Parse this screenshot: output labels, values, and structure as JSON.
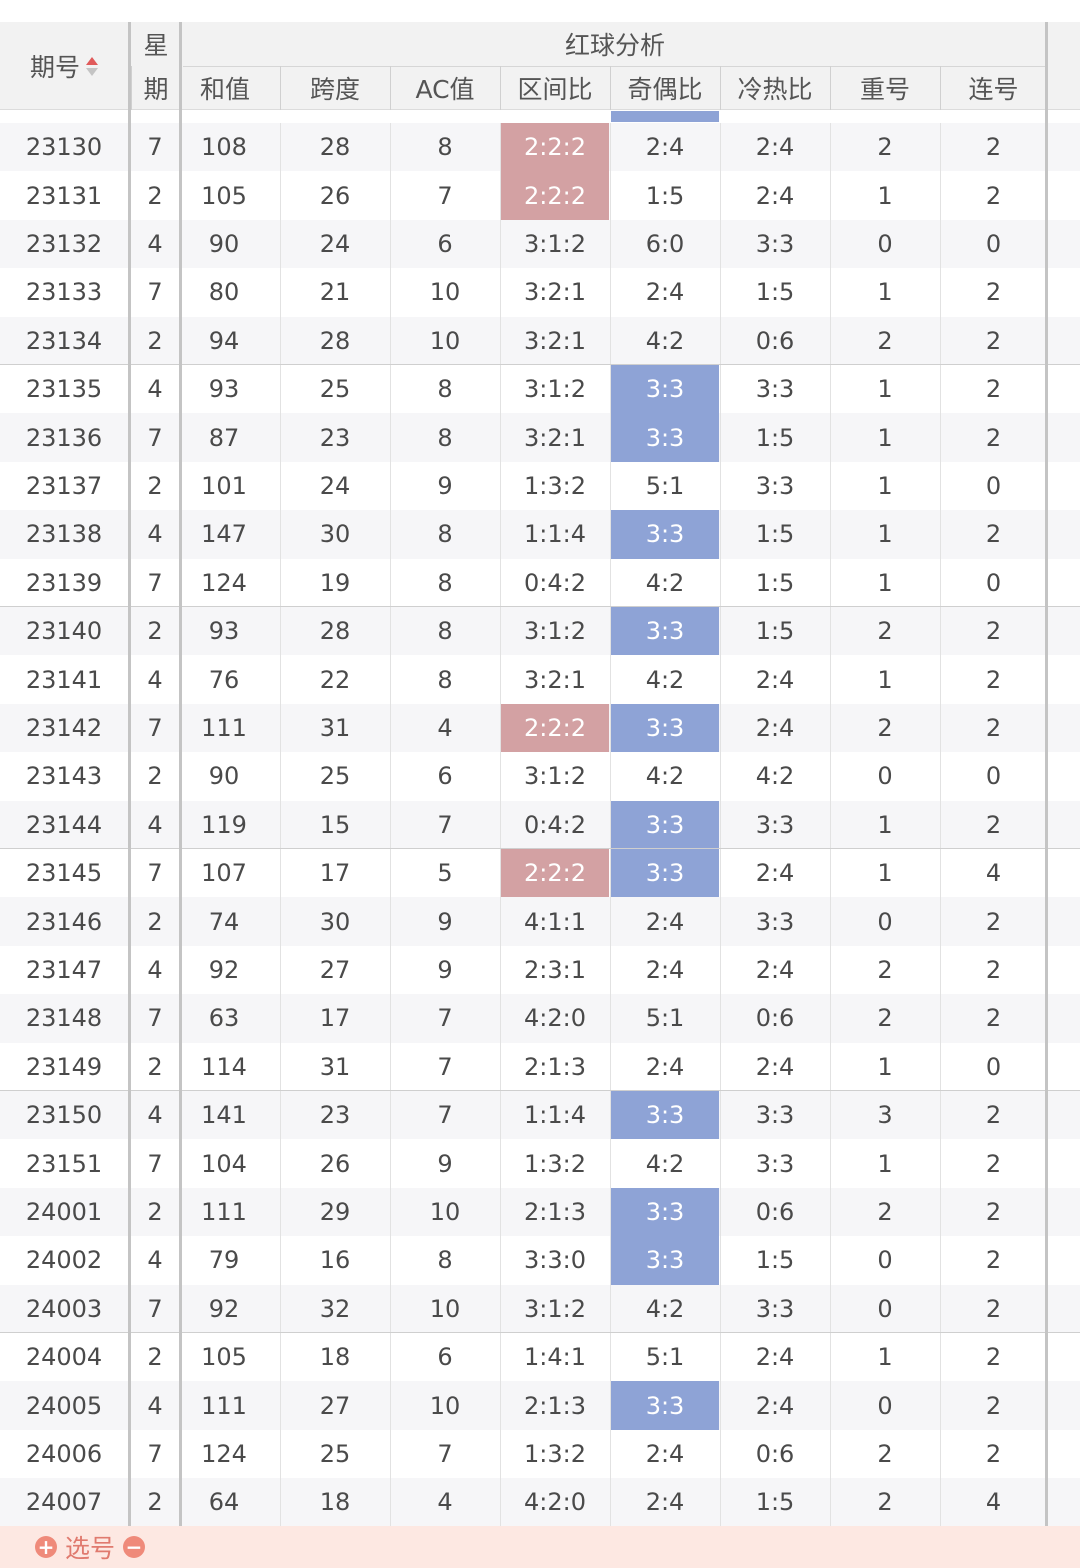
{
  "header": {
    "issue": "期号",
    "weekday_top": "星",
    "weekday_bottom": "期",
    "group_title": "红球分析",
    "columns": [
      "和值",
      "跨度",
      "AC值",
      "区间比",
      "奇偶比",
      "冷热比",
      "重号",
      "连号"
    ]
  },
  "rows": [
    {
      "issue": "23130",
      "week": "7",
      "sum": "108",
      "span": "28",
      "ac": "8",
      "zone": "2:2:2",
      "oe": "2:4",
      "ch": "2:4",
      "rep": "2",
      "con": "2",
      "zone_hl": true,
      "oe_hl": false
    },
    {
      "issue": "23131",
      "week": "2",
      "sum": "105",
      "span": "26",
      "ac": "7",
      "zone": "2:2:2",
      "oe": "1:5",
      "ch": "2:4",
      "rep": "1",
      "con": "2",
      "zone_hl": true,
      "oe_hl": false
    },
    {
      "issue": "23132",
      "week": "4",
      "sum": "90",
      "span": "24",
      "ac": "6",
      "zone": "3:1:2",
      "oe": "6:0",
      "ch": "3:3",
      "rep": "0",
      "con": "0",
      "zone_hl": false,
      "oe_hl": false
    },
    {
      "issue": "23133",
      "week": "7",
      "sum": "80",
      "span": "21",
      "ac": "10",
      "zone": "3:2:1",
      "oe": "2:4",
      "ch": "1:5",
      "rep": "1",
      "con": "2",
      "zone_hl": false,
      "oe_hl": false
    },
    {
      "issue": "23134",
      "week": "2",
      "sum": "94",
      "span": "28",
      "ac": "10",
      "zone": "3:2:1",
      "oe": "4:2",
      "ch": "0:6",
      "rep": "2",
      "con": "2",
      "zone_hl": false,
      "oe_hl": false
    },
    {
      "issue": "23135",
      "week": "4",
      "sum": "93",
      "span": "25",
      "ac": "8",
      "zone": "3:1:2",
      "oe": "3:3",
      "ch": "3:3",
      "rep": "1",
      "con": "2",
      "zone_hl": false,
      "oe_hl": true
    },
    {
      "issue": "23136",
      "week": "7",
      "sum": "87",
      "span": "23",
      "ac": "8",
      "zone": "3:2:1",
      "oe": "3:3",
      "ch": "1:5",
      "rep": "1",
      "con": "2",
      "zone_hl": false,
      "oe_hl": true
    },
    {
      "issue": "23137",
      "week": "2",
      "sum": "101",
      "span": "24",
      "ac": "9",
      "zone": "1:3:2",
      "oe": "5:1",
      "ch": "3:3",
      "rep": "1",
      "con": "0",
      "zone_hl": false,
      "oe_hl": false
    },
    {
      "issue": "23138",
      "week": "4",
      "sum": "147",
      "span": "30",
      "ac": "8",
      "zone": "1:1:4",
      "oe": "3:3",
      "ch": "1:5",
      "rep": "1",
      "con": "2",
      "zone_hl": false,
      "oe_hl": true
    },
    {
      "issue": "23139",
      "week": "7",
      "sum": "124",
      "span": "19",
      "ac": "8",
      "zone": "0:4:2",
      "oe": "4:2",
      "ch": "1:5",
      "rep": "1",
      "con": "0",
      "zone_hl": false,
      "oe_hl": false
    },
    {
      "issue": "23140",
      "week": "2",
      "sum": "93",
      "span": "28",
      "ac": "8",
      "zone": "3:1:2",
      "oe": "3:3",
      "ch": "1:5",
      "rep": "2",
      "con": "2",
      "zone_hl": false,
      "oe_hl": true
    },
    {
      "issue": "23141",
      "week": "4",
      "sum": "76",
      "span": "22",
      "ac": "8",
      "zone": "3:2:1",
      "oe": "4:2",
      "ch": "2:4",
      "rep": "1",
      "con": "2",
      "zone_hl": false,
      "oe_hl": false
    },
    {
      "issue": "23142",
      "week": "7",
      "sum": "111",
      "span": "31",
      "ac": "4",
      "zone": "2:2:2",
      "oe": "3:3",
      "ch": "2:4",
      "rep": "2",
      "con": "2",
      "zone_hl": true,
      "oe_hl": true
    },
    {
      "issue": "23143",
      "week": "2",
      "sum": "90",
      "span": "25",
      "ac": "6",
      "zone": "3:1:2",
      "oe": "4:2",
      "ch": "4:2",
      "rep": "0",
      "con": "0",
      "zone_hl": false,
      "oe_hl": false
    },
    {
      "issue": "23144",
      "week": "4",
      "sum": "119",
      "span": "15",
      "ac": "7",
      "zone": "0:4:2",
      "oe": "3:3",
      "ch": "3:3",
      "rep": "1",
      "con": "2",
      "zone_hl": false,
      "oe_hl": true
    },
    {
      "issue": "23145",
      "week": "7",
      "sum": "107",
      "span": "17",
      "ac": "5",
      "zone": "2:2:2",
      "oe": "3:3",
      "ch": "2:4",
      "rep": "1",
      "con": "4",
      "zone_hl": true,
      "oe_hl": true
    },
    {
      "issue": "23146",
      "week": "2",
      "sum": "74",
      "span": "30",
      "ac": "9",
      "zone": "4:1:1",
      "oe": "2:4",
      "ch": "3:3",
      "rep": "0",
      "con": "2",
      "zone_hl": false,
      "oe_hl": false
    },
    {
      "issue": "23147",
      "week": "4",
      "sum": "92",
      "span": "27",
      "ac": "9",
      "zone": "2:3:1",
      "oe": "2:4",
      "ch": "2:4",
      "rep": "2",
      "con": "2",
      "zone_hl": false,
      "oe_hl": false
    },
    {
      "issue": "23148",
      "week": "7",
      "sum": "63",
      "span": "17",
      "ac": "7",
      "zone": "4:2:0",
      "oe": "5:1",
      "ch": "0:6",
      "rep": "2",
      "con": "2",
      "zone_hl": false,
      "oe_hl": false
    },
    {
      "issue": "23149",
      "week": "2",
      "sum": "114",
      "span": "31",
      "ac": "7",
      "zone": "2:1:3",
      "oe": "2:4",
      "ch": "2:4",
      "rep": "1",
      "con": "0",
      "zone_hl": false,
      "oe_hl": false
    },
    {
      "issue": "23150",
      "week": "4",
      "sum": "141",
      "span": "23",
      "ac": "7",
      "zone": "1:1:4",
      "oe": "3:3",
      "ch": "3:3",
      "rep": "3",
      "con": "2",
      "zone_hl": false,
      "oe_hl": true
    },
    {
      "issue": "23151",
      "week": "7",
      "sum": "104",
      "span": "26",
      "ac": "9",
      "zone": "1:3:2",
      "oe": "4:2",
      "ch": "3:3",
      "rep": "1",
      "con": "2",
      "zone_hl": false,
      "oe_hl": false
    },
    {
      "issue": "24001",
      "week": "2",
      "sum": "111",
      "span": "29",
      "ac": "10",
      "zone": "2:1:3",
      "oe": "3:3",
      "ch": "0:6",
      "rep": "2",
      "con": "2",
      "zone_hl": false,
      "oe_hl": true
    },
    {
      "issue": "24002",
      "week": "4",
      "sum": "79",
      "span": "16",
      "ac": "8",
      "zone": "3:3:0",
      "oe": "3:3",
      "ch": "1:5",
      "rep": "0",
      "con": "2",
      "zone_hl": false,
      "oe_hl": true
    },
    {
      "issue": "24003",
      "week": "7",
      "sum": "92",
      "span": "32",
      "ac": "10",
      "zone": "3:1:2",
      "oe": "4:2",
      "ch": "3:3",
      "rep": "0",
      "con": "2",
      "zone_hl": false,
      "oe_hl": false
    },
    {
      "issue": "24004",
      "week": "2",
      "sum": "105",
      "span": "18",
      "ac": "6",
      "zone": "1:4:1",
      "oe": "5:1",
      "ch": "2:4",
      "rep": "1",
      "con": "2",
      "zone_hl": false,
      "oe_hl": false
    },
    {
      "issue": "24005",
      "week": "4",
      "sum": "111",
      "span": "27",
      "ac": "10",
      "zone": "2:1:3",
      "oe": "3:3",
      "ch": "2:4",
      "rep": "0",
      "con": "2",
      "zone_hl": false,
      "oe_hl": true
    },
    {
      "issue": "24006",
      "week": "7",
      "sum": "124",
      "span": "25",
      "ac": "7",
      "zone": "1:3:2",
      "oe": "2:4",
      "ch": "0:6",
      "rep": "2",
      "con": "2",
      "zone_hl": false,
      "oe_hl": false
    },
    {
      "issue": "24007",
      "week": "2",
      "sum": "64",
      "span": "18",
      "ac": "4",
      "zone": "4:2:0",
      "oe": "2:4",
      "ch": "1:5",
      "rep": "2",
      "con": "4",
      "zone_hl": false,
      "oe_hl": false
    }
  ],
  "footer": {
    "pick_label": "选号",
    "plus_icon": "plus-circle-icon",
    "minus_icon": "minus-circle-icon"
  },
  "colors": {
    "zone_highlight": "#d3a1a3",
    "oe_highlight": "#8ea3d6",
    "header_bg": "#f2f2f2",
    "footer_bg": "#fde8e2"
  }
}
